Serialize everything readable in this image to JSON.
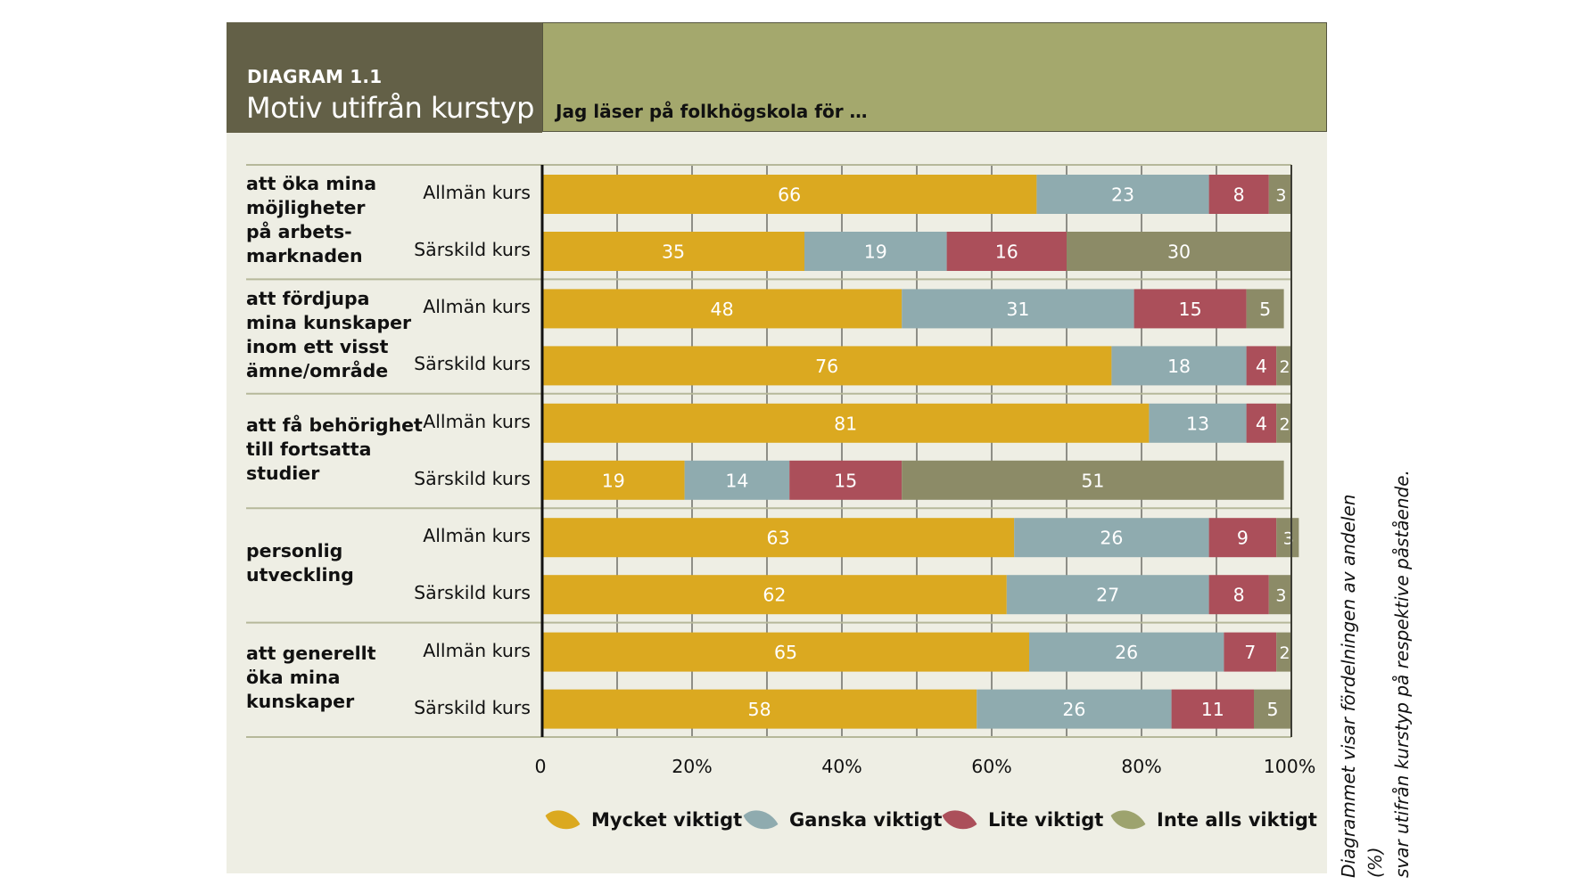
{
  "header": {
    "diagram_number": "DIAGRAM 1.1",
    "title": "Motiv utifrån kurstyp",
    "subtitle": "Jag läser på folkhögskola för …"
  },
  "note": "Diagrammet visar fördelningen av andelen (%)\nsvar utifrån kurstyp på respektive påstående.",
  "colors": {
    "mycket": "#dba920",
    "ganska": "#8fabaf",
    "lite": "#ab4f5a",
    "inte": "#8c8b67",
    "legend_inte": "#9da36e",
    "header_dark": "#636047",
    "header_light": "#a4a86d",
    "panel_bg": "#eeeee4"
  },
  "chart_data": {
    "type": "bar",
    "orientation": "horizontal",
    "stacked": true,
    "title": "Motiv utifrån kurstyp",
    "subtitle": "Jag läser på folkhögskola för …",
    "xlabel": "",
    "ylabel": "",
    "xlim": [
      0,
      100
    ],
    "x_ticks": [
      "0",
      "20%",
      "40%",
      "60%",
      "80%",
      "100%"
    ],
    "grid": true,
    "legend_position": "bottom",
    "series_names": [
      "Mycket viktigt",
      "Ganska viktigt",
      "Lite viktigt",
      "Inte alls viktigt"
    ],
    "groups": [
      {
        "label": "att öka mina\nmöjligheter\npå arbets-\nmarknaden",
        "rows": [
          {
            "label": "Allmän kurs",
            "values": [
              66,
              23,
              8,
              3
            ]
          },
          {
            "label": "Särskild kurs",
            "values": [
              35,
              19,
              16,
              30
            ]
          }
        ]
      },
      {
        "label": "att fördjupa\nmina kunskaper\ninom ett visst\nämne/område",
        "rows": [
          {
            "label": "Allmän kurs",
            "values": [
              48,
              31,
              15,
              5
            ]
          },
          {
            "label": "Särskild kurs",
            "values": [
              76,
              18,
              4,
              2
            ]
          }
        ]
      },
      {
        "label": "att få behörighet\ntill fortsatta\nstudier",
        "rows": [
          {
            "label": "Allmän kurs",
            "values": [
              81,
              13,
              4,
              2
            ]
          },
          {
            "label": "Särskild kurs",
            "values": [
              19,
              14,
              15,
              51
            ]
          }
        ]
      },
      {
        "label": "personlig\nutveckling",
        "rows": [
          {
            "label": "Allmän kurs",
            "values": [
              63,
              26,
              9,
              3
            ]
          },
          {
            "label": "Särskild kurs",
            "values": [
              62,
              27,
              8,
              3
            ]
          }
        ]
      },
      {
        "label": "att generellt\nöka mina\nkunskaper",
        "rows": [
          {
            "label": "Allmän kurs",
            "values": [
              65,
              26,
              7,
              2
            ]
          },
          {
            "label": "Särskild kurs",
            "values": [
              58,
              26,
              11,
              5
            ]
          }
        ]
      }
    ]
  }
}
